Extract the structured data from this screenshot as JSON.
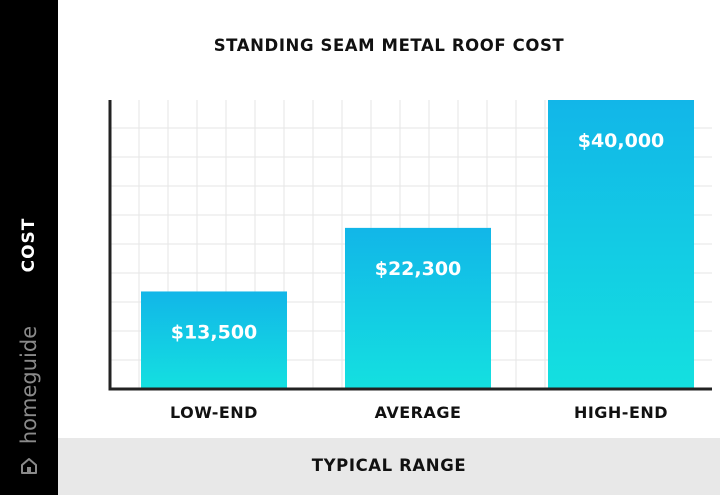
{
  "brand": {
    "name": "homeguide",
    "icon": "house-icon"
  },
  "colors": {
    "bar_top": "#12b6e8",
    "bar_bottom": "#14e0e0",
    "grid": "#e6e6e6",
    "sidebar": "#000000",
    "footer": "#e8e8e8"
  },
  "chart_data": {
    "type": "bar",
    "title": "STANDING SEAM METAL ROOF COST",
    "xlabel": "TYPICAL RANGE",
    "ylabel": "COST",
    "categories": [
      "LOW-END",
      "AVERAGE",
      "HIGH-END"
    ],
    "values": [
      13500,
      22300,
      40000
    ],
    "value_labels": [
      "$13,500",
      "$22,300",
      "$40,000"
    ],
    "ylim": [
      0,
      40000
    ],
    "grid": true,
    "legend": "none"
  }
}
